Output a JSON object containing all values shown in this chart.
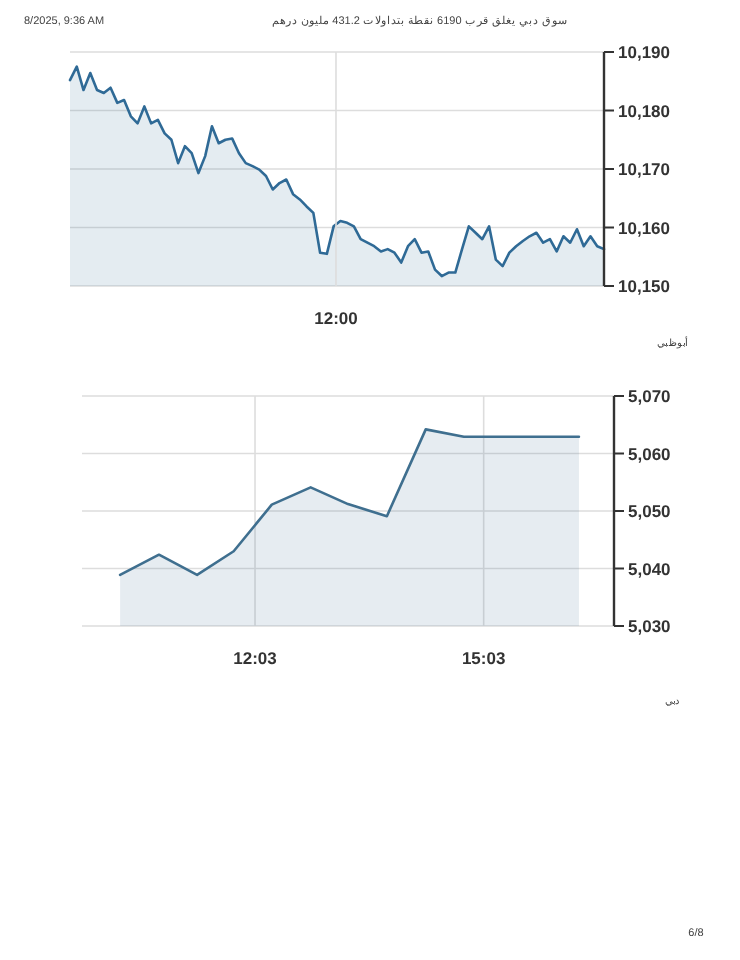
{
  "chart_data": [
    {
      "type": "area",
      "annotations": [
        "8/2025, 9:36 AM",
        "سوق دبي يغلق قرب 6190 نقطة بتداولات 431.2 مليون درهم",
        "أبوظبي",
        "12:00"
      ],
      "categories": [
        null,
        null,
        null,
        null,
        null,
        null,
        null,
        null,
        null,
        null,
        null,
        null,
        null,
        null,
        null,
        null,
        null,
        null,
        null,
        null,
        null,
        null,
        null,
        null,
        null,
        null,
        null,
        null,
        null,
        null,
        null,
        null,
        null,
        null,
        null,
        null,
        null,
        null,
        null,
        null,
        null,
        null,
        null,
        null,
        null,
        null,
        null,
        null,
        null,
        null,
        null,
        null,
        null,
        null,
        null,
        null,
        null,
        null,
        null,
        null,
        null,
        null,
        null,
        null,
        null,
        null,
        null,
        null,
        null,
        null,
        null,
        null,
        null,
        null,
        null,
        null,
        null,
        null,
        null,
        null
      ],
      "ylim": [
        10150,
        10190
      ],
      "yticks": [
        {
          "value": 10150,
          "label": "10,150"
        },
        {
          "value": 10160,
          "label": "10,160"
        },
        {
          "value": 10170,
          "label": "10,170"
        },
        {
          "value": 10180,
          "label": "10,180"
        },
        {
          "value": 10190,
          "label": "10,190"
        }
      ],
      "grid": true,
      "series": [
        {
          "color": "#2f6a96",
          "values": [
            10185.2,
            10187.5,
            10183.5,
            10186.4,
            10183.5,
            10183.0,
            10183.9,
            10181.3,
            10181.8,
            10179.0,
            10177.8,
            10180.7,
            10177.8,
            10178.4,
            10176.1,
            10175.0,
            10171.0,
            10173.9,
            10172.7,
            10169.3,
            10172.2,
            10177.3,
            10174.4,
            10175.0,
            10175.2,
            10172.7,
            10171.0,
            10170.5,
            10169.9,
            10168.8,
            10166.5,
            10167.6,
            10168.2,
            10165.7,
            10164.8,
            10163.6,
            10162.5,
            10155.7,
            10155.5,
            10160.2,
            10161.1,
            10160.8,
            10160.2,
            10158.0,
            10157.4,
            10156.8,
            10155.9,
            10156.3,
            10155.7,
            10154.0,
            10156.8,
            10158.0,
            10155.7,
            10155.9,
            10152.8,
            10151.7,
            10152.3,
            10152.3,
            10156.3,
            10160.2,
            10159.1,
            10158.0,
            10160.2,
            10154.5,
            10153.4,
            10155.7,
            10156.8,
            10157.7,
            10158.5,
            10159.1,
            10157.4,
            10158.0,
            10155.9,
            10158.5,
            10157.4,
            10159.7,
            10156.8,
            10158.5,
            10156.8,
            10156.3
          ]
        }
      ]
    },
    {
      "type": "area",
      "annotations": [
        "دبي",
        "6/8"
      ],
      "xlim": [
        9.78,
        16.76
      ],
      "ylim": [
        5030,
        5070
      ],
      "xticks": [
        {
          "value": 12.05,
          "label": "12:03"
        },
        {
          "value": 15.05,
          "label": "15:03"
        }
      ],
      "yticks": [
        {
          "value": 5030,
          "label": "5,030"
        },
        {
          "value": 5040,
          "label": "5,040"
        },
        {
          "value": 5050,
          "label": "5,050"
        },
        {
          "value": 5060,
          "label": "5,060"
        },
        {
          "value": 5070,
          "label": "5,070"
        }
      ],
      "grid": true,
      "series": [
        {
          "color": "#3f6f8f",
          "x": [
            10.28,
            10.79,
            11.29,
            11.77,
            12.27,
            12.78,
            13.27,
            13.78,
            14.29,
            14.79,
            15.29,
            15.79,
            16.3
          ],
          "values": [
            5038.9,
            5042.4,
            5038.9,
            5043.0,
            5051.1,
            5054.1,
            5051.2,
            5049.1,
            5064.2,
            5062.9,
            5062.9,
            5062.9,
            5062.9
          ]
        }
      ]
    }
  ]
}
